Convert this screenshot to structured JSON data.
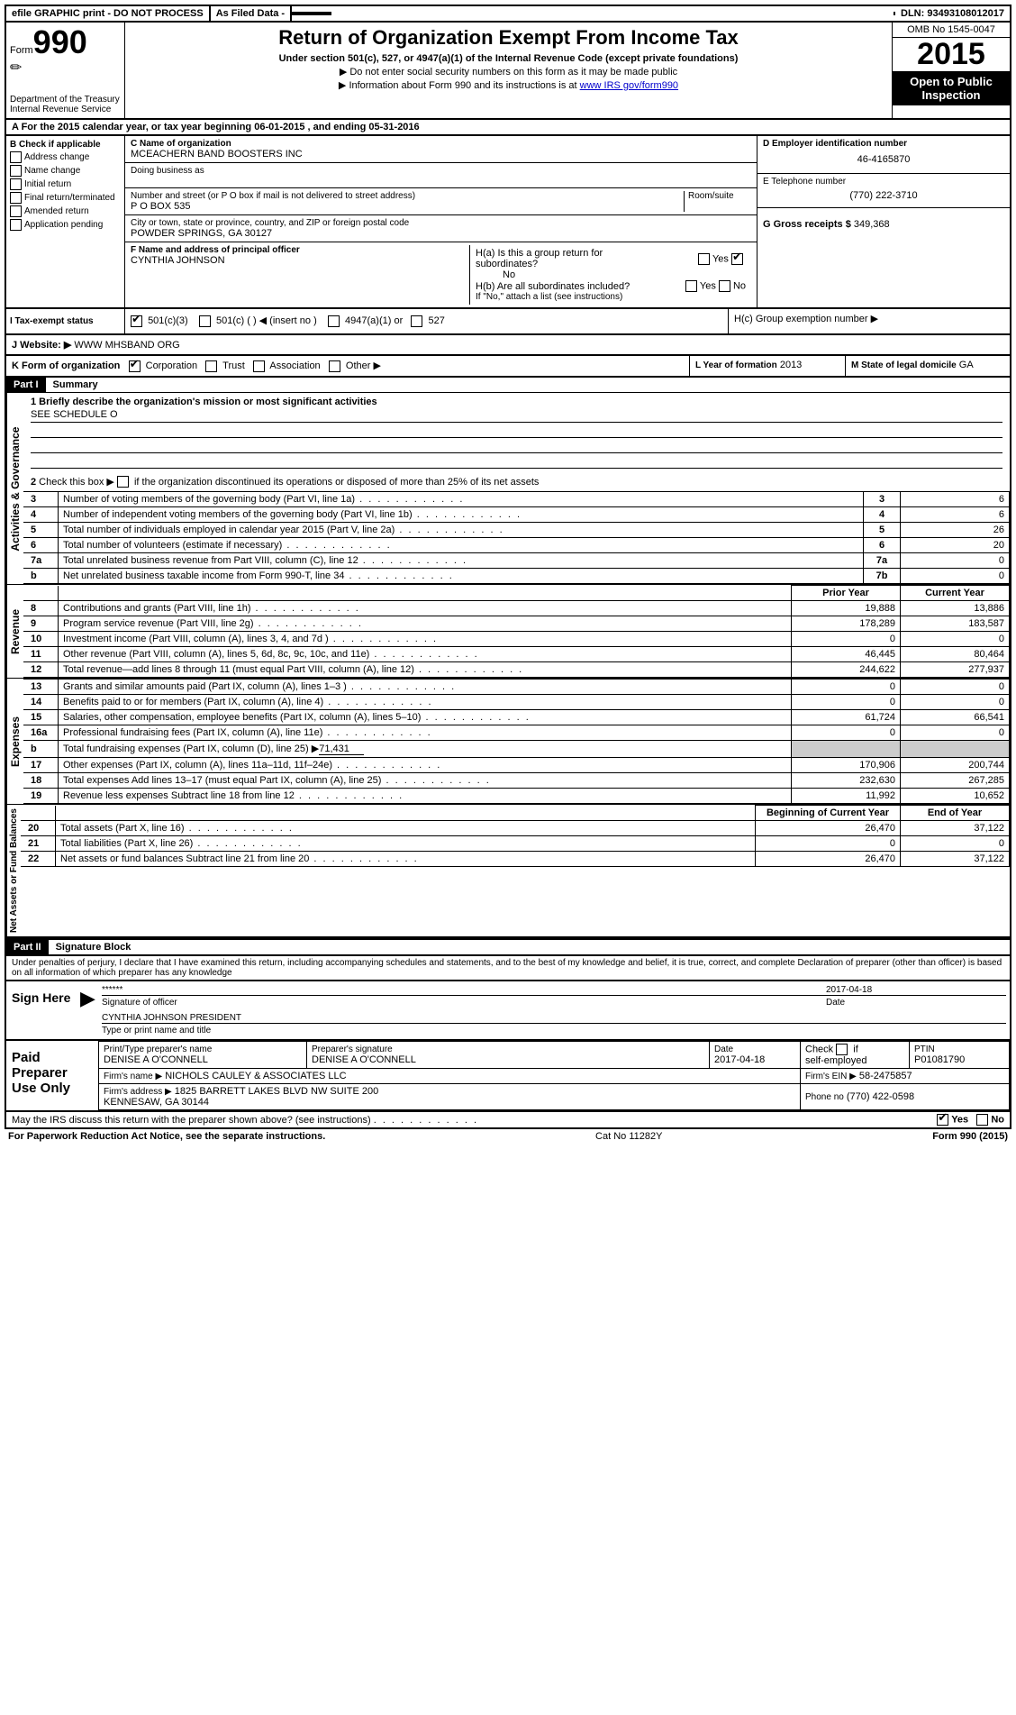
{
  "header": {
    "efile": "efile GRAPHIC print - DO NOT PROCESS",
    "asfiled": "As Filed Data -",
    "dln_label": "DLN:",
    "dln": "93493108012017"
  },
  "title_block": {
    "form_label": "Form",
    "form_num": "990",
    "dept1": "Department of the Treasury",
    "dept2": "Internal Revenue Service",
    "main_title": "Return of Organization Exempt From Income Tax",
    "subtitle": "Under section 501(c), 527, or 4947(a)(1) of the Internal Revenue Code (except private foundations)",
    "line1": "▶ Do not enter social security numbers on this form as it may be made public",
    "line2_a": "▶ Information about Form 990 and its instructions is at ",
    "line2_link": "www IRS gov/form990",
    "omb": "OMB No 1545-0047",
    "year": "2015",
    "inspection": "Open to Public Inspection"
  },
  "section_a": {
    "text_a": "A  For the 2015 calendar year, or tax year beginning ",
    "begin": "06-01-2015",
    "mid": "  , and ending ",
    "end": "05-31-2016"
  },
  "col_b": {
    "header": "B  Check if applicable",
    "items": [
      "Address change",
      "Name change",
      "Initial return",
      "Final return/terminated",
      "Amended return",
      "Application pending"
    ]
  },
  "col_c": {
    "name_label": "C  Name of organization",
    "name": "MCEACHERN BAND BOOSTERS INC",
    "dba_label": "Doing business as",
    "street_label": "Number and street (or P O  box if mail is not delivered to street address)",
    "room_label": "Room/suite",
    "street": "P O BOX 535",
    "city_label": "City or town, state or province, country, and ZIP or foreign postal code",
    "city": "POWDER SPRINGS, GA  30127",
    "officer_label": "F  Name and address of principal officer",
    "officer": "CYNTHIA JOHNSON"
  },
  "col_d": {
    "d_label": "D Employer identification number",
    "ein": "46-4165870",
    "e_label": "E Telephone number",
    "phone": "(770) 222-3710",
    "g_label": "G Gross receipts $",
    "gross": "349,368"
  },
  "col_h": {
    "ha": "H(a)  Is this a group return for subordinates?",
    "ha_no": "No",
    "yes": "Yes",
    "no": "No",
    "hb": "H(b)  Are all subordinates included?",
    "hb_note": "If \"No,\" attach a list  (see instructions)",
    "hc": "H(c)  Group exemption number ▶"
  },
  "row_i": {
    "label": "I  Tax-exempt status",
    "opt1": "501(c)(3)",
    "opt2": "501(c) (   ) ◀ (insert no )",
    "opt3": "4947(a)(1) or",
    "opt4": "527"
  },
  "row_j": {
    "label": "J  Website: ▶",
    "site": "WWW MHSBAND ORG"
  },
  "row_k": {
    "label": "K Form of organization",
    "corp": "Corporation",
    "trust": "Trust",
    "assoc": "Association",
    "other": "Other ▶",
    "l_label": "L Year of formation",
    "l_val": "2013",
    "m_label": "M State of legal domicile",
    "m_val": "GA"
  },
  "part1": {
    "header": "Part I",
    "title": "Summary",
    "q1": "1 Briefly describe the organization's mission or most significant activities",
    "q1_ans": "SEE SCHEDULE O",
    "q2": "2  Check this box ▶      if the organization discontinued its operations or disposed of more than 25% of its net assets",
    "side_ag": "Activities & Governance",
    "side_rev": "Revenue",
    "side_exp": "Expenses",
    "side_net": "Net Assets or Fund Balances",
    "rows_top": [
      {
        "n": "3",
        "t": "Number of voting members of the governing body (Part VI, line 1a)",
        "c": "3",
        "v": "6"
      },
      {
        "n": "4",
        "t": "Number of independent voting members of the governing body (Part VI, line 1b)",
        "c": "4",
        "v": "6"
      },
      {
        "n": "5",
        "t": "Total number of individuals employed in calendar year 2015 (Part V, line 2a)",
        "c": "5",
        "v": "26"
      },
      {
        "n": "6",
        "t": "Total number of volunteers (estimate if necessary)",
        "c": "6",
        "v": "20"
      },
      {
        "n": "7a",
        "t": "Total unrelated business revenue from Part VIII, column (C), line 12",
        "c": "7a",
        "v": "0"
      },
      {
        "n": "b",
        "t": "Net unrelated business taxable income from Form 990-T, line 34",
        "c": "7b",
        "v": "0"
      }
    ],
    "col_h1": "Prior Year",
    "col_h2": "Current Year",
    "rev_rows": [
      {
        "n": "8",
        "t": "Contributions and grants (Part VIII, line 1h)",
        "p": "19,888",
        "c": "13,886"
      },
      {
        "n": "9",
        "t": "Program service revenue (Part VIII, line 2g)",
        "p": "178,289",
        "c": "183,587"
      },
      {
        "n": "10",
        "t": "Investment income (Part VIII, column (A), lines 3, 4, and 7d )",
        "p": "0",
        "c": "0"
      },
      {
        "n": "11",
        "t": "Other revenue (Part VIII, column (A), lines 5, 6d, 8c, 9c, 10c, and 11e)",
        "p": "46,445",
        "c": "80,464"
      },
      {
        "n": "12",
        "t": "Total revenue—add lines 8 through 11 (must equal Part VIII, column (A), line 12)",
        "p": "244,622",
        "c": "277,937"
      }
    ],
    "exp_rows": [
      {
        "n": "13",
        "t": "Grants and similar amounts paid (Part IX, column (A), lines 1–3 )",
        "p": "0",
        "c": "0"
      },
      {
        "n": "14",
        "t": "Benefits paid to or for members (Part IX, column (A), line 4)",
        "p": "0",
        "c": "0"
      },
      {
        "n": "15",
        "t": "Salaries, other compensation, employee benefits (Part IX, column (A), lines 5–10)",
        "p": "61,724",
        "c": "66,541"
      },
      {
        "n": "16a",
        "t": "Professional fundraising fees (Part IX, column (A), line 11e)",
        "p": "0",
        "c": "0"
      }
    ],
    "exp_b": {
      "n": "b",
      "t": "Total fundraising expenses (Part IX, column (D), line 25) ▶",
      "v": "71,431"
    },
    "exp_rows2": [
      {
        "n": "17",
        "t": "Other expenses (Part IX, column (A), lines 11a–11d, 11f–24e)",
        "p": "170,906",
        "c": "200,744"
      },
      {
        "n": "18",
        "t": "Total expenses  Add lines 13–17 (must equal Part IX, column (A), line 25)",
        "p": "232,630",
        "c": "267,285"
      },
      {
        "n": "19",
        "t": "Revenue less expenses  Subtract line 18 from line 12",
        "p": "11,992",
        "c": "10,652"
      }
    ],
    "bal_h1": "Beginning of Current Year",
    "bal_h2": "End of Year",
    "bal_rows": [
      {
        "n": "20",
        "t": "Total assets (Part X, line 16)",
        "p": "26,470",
        "c": "37,122"
      },
      {
        "n": "21",
        "t": "Total liabilities (Part X, line 26)",
        "p": "0",
        "c": "0"
      },
      {
        "n": "22",
        "t": "Net assets or fund balances  Subtract line 21 from line 20",
        "p": "26,470",
        "c": "37,122"
      }
    ]
  },
  "part2": {
    "header": "Part II",
    "title": "Signature Block",
    "declaration": "Under penalties of perjury, I declare that I have examined this return, including accompanying schedules and statements, and to the best of my knowledge and belief, it is true, correct, and complete  Declaration of preparer (other than officer) is based on all information of which preparer has any knowledge"
  },
  "sign": {
    "left": "Sign Here",
    "stars": "******",
    "sig_label": "Signature of officer",
    "date": "2017-04-18",
    "date_label": "Date",
    "name": "CYNTHIA JOHNSON PRESIDENT",
    "name_label": "Type or print name and title"
  },
  "paid": {
    "left": "Paid Preparer Use Only",
    "h1": "Print/Type preparer's name",
    "h2": "Preparer's signature",
    "h3": "Date",
    "h4": "Check        if self-employed",
    "h5": "PTIN",
    "prep_name": "DENISE A O'CONNELL",
    "prep_sig": "DENISE A O'CONNELL",
    "prep_date": "2017-04-18",
    "ptin": "P01081790",
    "firm_name_l": "Firm's name     ▶",
    "firm_name": "NICHOLS CAULEY & ASSOCIATES LLC",
    "firm_ein_l": "Firm's EIN ▶",
    "firm_ein": "58-2475857",
    "firm_addr_l": "Firm's address ▶",
    "firm_addr": "1825 BARRETT LAKES BLVD NW SUITE 200\nKENNESAW, GA  30144",
    "phone_l": "Phone no",
    "phone": "(770) 422-0598"
  },
  "discuss": {
    "q": "May the IRS discuss this return with the preparer shown above? (see instructions)",
    "yes": "Yes",
    "no": "No"
  },
  "footer": {
    "left": "For Paperwork Reduction Act Notice, see the separate instructions.",
    "mid": "Cat No  11282Y",
    "right": "Form 990 (2015)"
  }
}
